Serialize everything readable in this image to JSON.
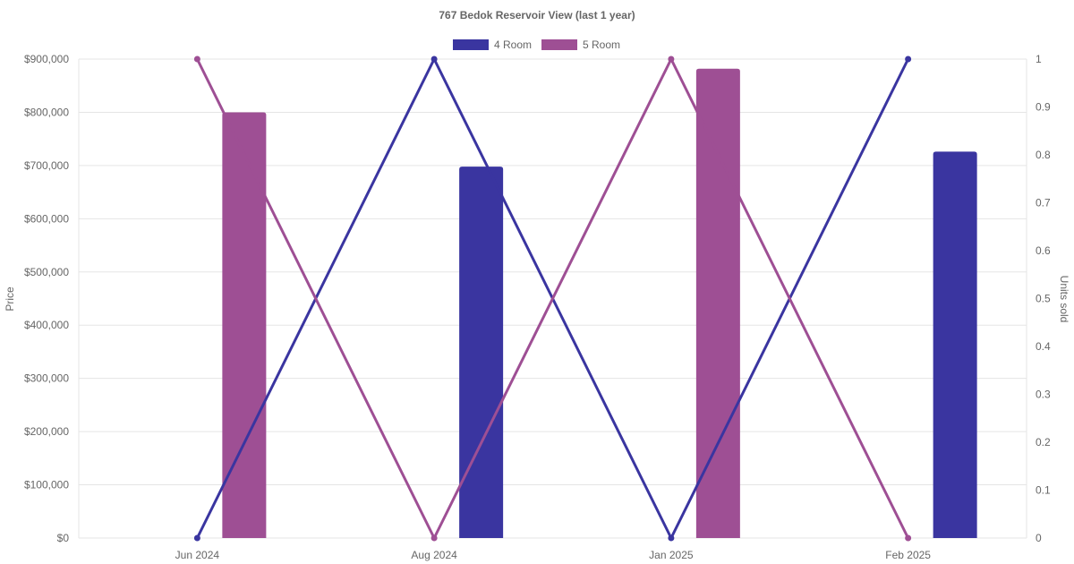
{
  "chart_data": {
    "type": "bar",
    "title": "767 Bedok Reservoir View (last 1 year)",
    "categories": [
      "Jun 2024",
      "Aug 2024",
      "Jan 2025",
      "Feb 2025"
    ],
    "y_left": {
      "label": "Price",
      "ylim": [
        0,
        900000
      ],
      "ticks": [
        "$0",
        "$100,000",
        "$200,000",
        "$300,000",
        "$400,000",
        "$500,000",
        "$600,000",
        "$700,000",
        "$800,000",
        "$900,000"
      ]
    },
    "y_right": {
      "label": "Units sold",
      "ylim": [
        0,
        1
      ],
      "ticks": [
        "0",
        "0.1",
        "0.2",
        "0.3",
        "0.4",
        "0.5",
        "0.6",
        "0.7",
        "0.8",
        "0.9",
        "1"
      ]
    },
    "grid": true,
    "legend_position": "top-center",
    "series": [
      {
        "name": "4 Room",
        "color": "#3a35a0",
        "price": [
          null,
          698000,
          null,
          726000
        ],
        "units_sold": [
          0,
          1,
          0,
          1
        ]
      },
      {
        "name": "5 Room",
        "color": "#9e4f94",
        "price": [
          800000,
          null,
          882000,
          null
        ],
        "units_sold": [
          1,
          0,
          1,
          0
        ]
      }
    ]
  }
}
